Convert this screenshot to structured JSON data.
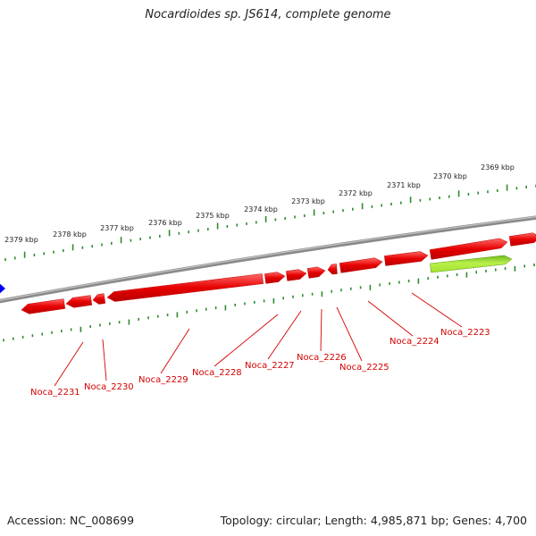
{
  "title": "Nocardioides sp. JS614, complete genome",
  "footer": {
    "accession": "Accession: NC_008699",
    "summary": "Topology: circular; Length: 4,985,871 bp; Genes: 4,700"
  },
  "scale_labels": [
    "2369 kbp",
    "2370 kbp",
    "2371 kbp",
    "2372 kbp",
    "2373 kbp",
    "2374 kbp",
    "2375 kbp",
    "2376 kbp",
    "2377 kbp",
    "2378 kbp",
    "2379 kbp"
  ],
  "gene_labels": [
    "Noca_2223",
    "Noca_2224",
    "Noca_2225",
    "Noca_2226",
    "Noca_2227",
    "Noca_2228",
    "Noca_2229",
    "Noca_2230",
    "Noca_2231"
  ],
  "colors": {
    "gene": "#e60000",
    "highlight_gene": "#a6e22e",
    "backbone": "#8a8a8a",
    "ticks": "#2e8b2e",
    "label": "#d40000",
    "marker": "#0000ff"
  }
}
